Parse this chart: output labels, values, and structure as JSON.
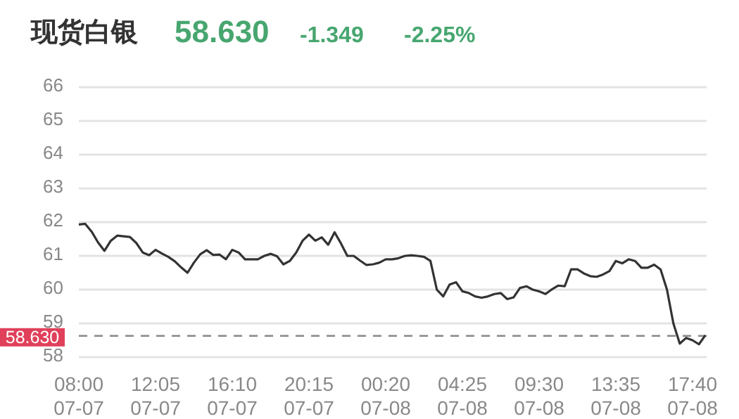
{
  "chart_data": {
    "type": "line",
    "title": "现货白银",
    "annotations": [
      "58.630",
      "-1.349",
      "-2.25%"
    ],
    "categories": [
      "08:00 07-07",
      null,
      null,
      null,
      null,
      null,
      null,
      null,
      null,
      null,
      null,
      null,
      "12:05 07-07",
      null,
      null,
      null,
      null,
      null,
      null,
      null,
      null,
      null,
      null,
      null,
      "16:10 07-07",
      null,
      null,
      null,
      null,
      null,
      null,
      null,
      null,
      null,
      null,
      null,
      "20:15 07-07",
      null,
      null,
      null,
      null,
      null,
      null,
      null,
      null,
      null,
      null,
      null,
      "00:20 07-08",
      null,
      null,
      null,
      null,
      null,
      null,
      null,
      null,
      null,
      null,
      null,
      "04:25 07-08",
      null,
      null,
      null,
      null,
      null,
      null,
      null,
      null,
      null,
      null,
      null,
      "09:30 07-08",
      null,
      null,
      null,
      null,
      null,
      null,
      null,
      null,
      null,
      null,
      null,
      "13:35 07-08",
      null,
      null,
      null,
      null,
      null,
      null,
      null,
      null,
      null,
      null,
      null,
      "17:40 07-08",
      null,
      null
    ],
    "series": [
      {
        "color": "#333333",
        "values": [
          61.93,
          61.95,
          61.72,
          61.4,
          61.15,
          61.45,
          61.6,
          61.58,
          61.56,
          61.38,
          61.1,
          61.02,
          61.18,
          61.07,
          60.97,
          60.84,
          60.66,
          60.5,
          60.8,
          61.05,
          61.17,
          61.03,
          61.04,
          60.9,
          61.18,
          61.1,
          60.9,
          60.9,
          60.9,
          61.0,
          61.06,
          60.99,
          60.75,
          60.85,
          61.1,
          61.45,
          61.63,
          61.45,
          61.55,
          61.33,
          61.7,
          61.37,
          61.0,
          61.0,
          60.86,
          60.73,
          60.75,
          60.8,
          60.9,
          60.9,
          60.93,
          61.0,
          61.02,
          61.0,
          60.97,
          60.85,
          60.0,
          59.8,
          60.15,
          60.22,
          59.95,
          59.9,
          59.8,
          59.76,
          59.8,
          59.87,
          59.9,
          59.72,
          59.77,
          60.05,
          60.1,
          60.0,
          59.95,
          59.87,
          60.01,
          60.12,
          60.1,
          60.6,
          60.6,
          60.48,
          60.4,
          60.38,
          60.45,
          60.55,
          60.85,
          60.78,
          60.9,
          60.85,
          60.65,
          60.65,
          60.74,
          60.6,
          60.0,
          59.0,
          58.4,
          58.57,
          58.5,
          58.38,
          58.65
        ]
      }
    ],
    "ylim": [
      58,
      66
    ],
    "yticks": [
      58,
      59,
      60,
      61,
      62,
      63,
      64,
      65,
      66
    ],
    "grid": "y",
    "ref_lines": [
      {
        "axis": "y",
        "value": 58.63,
        "label": "58.630",
        "color": "#888888",
        "line_style": "dashed"
      }
    ],
    "marker": "none",
    "line_style": "solid"
  }
}
